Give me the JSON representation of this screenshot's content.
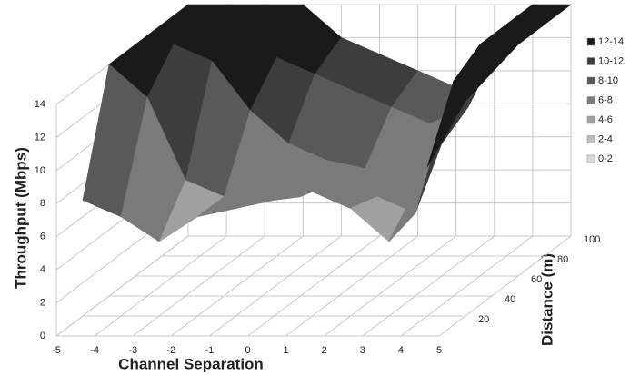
{
  "chart_data": {
    "type": "surface",
    "x_label": "Channel Separation",
    "y_label": "Throughput (Mbps)",
    "depth_label": "Distance (m)",
    "categories": [
      "-5",
      "-4",
      "-3",
      "-2",
      "-1",
      "0",
      "1",
      "2",
      "3",
      "4",
      "5"
    ],
    "series": [
      {
        "name": "20",
        "values": [
          7,
          6,
          4.5,
          6,
          6.5,
          7,
          7.5,
          6.5,
          4.5,
          9,
          13
        ]
      },
      {
        "name": "40",
        "values": [
          14,
          12,
          7,
          6,
          6.5,
          6,
          7,
          6,
          5,
          13,
          13.5
        ]
      },
      {
        "name": "60",
        "values": [
          14,
          14,
          13,
          10,
          8,
          7,
          6.5,
          6,
          8,
          14,
          14
        ]
      },
      {
        "name": "80",
        "values": [
          14,
          14,
          14,
          12,
          11,
          10,
          9,
          8,
          9,
          14,
          14
        ]
      },
      {
        "name": "100",
        "values": [
          14,
          14,
          14,
          14,
          12,
          11,
          10,
          9,
          11,
          14,
          14
        ]
      }
    ],
    "ylim": [
      0,
      14
    ],
    "yticks": [
      0,
      2,
      4,
      6,
      8,
      10,
      12,
      14
    ],
    "bands": [
      {
        "label": "12-14",
        "min": 12,
        "max": 14,
        "color": "#1a1a1a"
      },
      {
        "label": "10-12",
        "min": 10,
        "max": 12,
        "color": "#3d3d3d"
      },
      {
        "label": "8-10",
        "min": 8,
        "max": 10,
        "color": "#595959"
      },
      {
        "label": "6-8",
        "min": 6,
        "max": 8,
        "color": "#7a7a7a"
      },
      {
        "label": "4-6",
        "min": 4,
        "max": 6,
        "color": "#a0a0a0"
      },
      {
        "label": "2-4",
        "min": 2,
        "max": 4,
        "color": "#bdbdbd"
      },
      {
        "label": "0-2",
        "min": 0,
        "max": 2,
        "color": "#dadada"
      }
    ]
  }
}
